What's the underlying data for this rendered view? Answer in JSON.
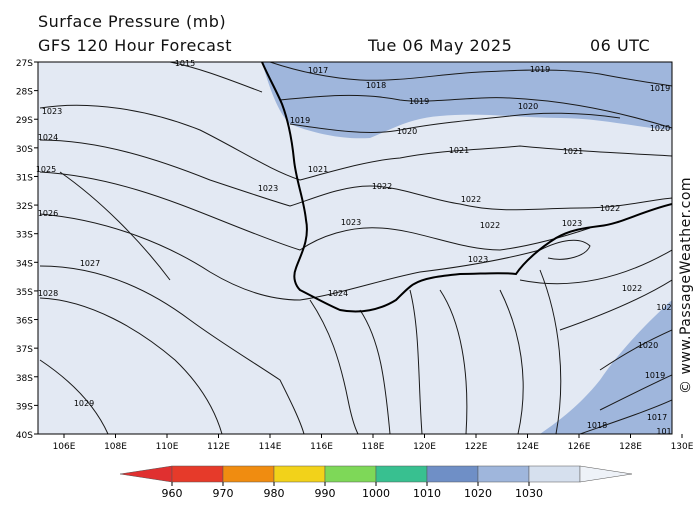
{
  "header": {
    "title": "Surface Pressure (mb)",
    "forecast": "GFS 120 Hour Forecast",
    "date": "Tue 06 May 2025",
    "time": "06 UTC"
  },
  "credit": "© www.PassageWeather.com",
  "map": {
    "lat_labels": [
      "27S",
      "28S",
      "29S",
      "30S",
      "31S",
      "32S",
      "33S",
      "34S",
      "35S",
      "36S",
      "37S",
      "38S",
      "39S",
      "40S"
    ],
    "lon_labels": [
      "106E",
      "108E",
      "110E",
      "112E",
      "114E",
      "116E",
      "118E",
      "120E",
      "122E",
      "124E",
      "126E",
      "128E",
      "130E"
    ],
    "contour_labels": [
      {
        "text": "1015"
      },
      {
        "text": "1017"
      },
      {
        "text": "1018"
      },
      {
        "text": "1019"
      },
      {
        "text": "1019"
      },
      {
        "text": "1019"
      },
      {
        "text": "1019"
      },
      {
        "text": "1020"
      },
      {
        "text": "1020"
      },
      {
        "text": "1020"
      },
      {
        "text": "1021"
      },
      {
        "text": "1021"
      },
      {
        "text": "1021"
      },
      {
        "text": "1022"
      },
      {
        "text": "1022"
      },
      {
        "text": "1022"
      },
      {
        "text": "1022"
      },
      {
        "text": "1023"
      },
      {
        "text": "1023"
      },
      {
        "text": "1023"
      },
      {
        "text": "1023"
      },
      {
        "text": "1023"
      },
      {
        "text": "1024"
      },
      {
        "text": "1024"
      },
      {
        "text": "1025"
      },
      {
        "text": "1026"
      },
      {
        "text": "1027"
      },
      {
        "text": "1028"
      },
      {
        "text": "1029"
      },
      {
        "text": "1022"
      },
      {
        "text": "102"
      },
      {
        "text": "1020"
      },
      {
        "text": "1019"
      },
      {
        "text": "1018"
      },
      {
        "text": "1017"
      },
      {
        "text": "101"
      }
    ]
  },
  "colorbar": {
    "labels": [
      "960",
      "970",
      "980",
      "990",
      "1000",
      "1010",
      "1020",
      "1030"
    ],
    "colors": [
      "#e63a2a",
      "#f08c10",
      "#f2d21a",
      "#7ed858",
      "#38c090",
      "#6f8fc6",
      "#9fb6dc",
      "#d6e0ee"
    ],
    "left_arrow_color": "#e03030",
    "right_arrow_color": "#eef2f8"
  },
  "colors": {
    "low_fill": "#9fb6dc",
    "high_fill": "#e3e9f3"
  }
}
